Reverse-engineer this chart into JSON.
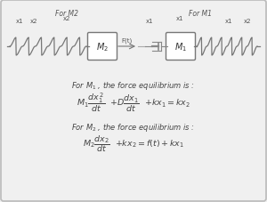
{
  "bg_color": "#f0f0f0",
  "border_color": "#bbbbbb",
  "text_color": "#555555",
  "dark_color": "#333333",
  "title_m2": "For M2",
  "title_m1": "For M1",
  "label_x1a": "x1",
  "label_x2a": "x2",
  "label_x2b": "x2",
  "label_ft": "F(t)",
  "label_x1b": "x1",
  "label_x1c": "x1",
  "label_x1d": "x1",
  "label_x2c": "x2",
  "eq1_header": "For $\\mathit{M_1}$ , the force equilibrium is :",
  "eq1_math_a": "$M_1\\dfrac{dx_1^2}{dt}$",
  "eq1_math_b": "$+ D\\dfrac{dx_1}{dt}$",
  "eq1_math_c": "$+ kx_1 = kx_2$",
  "eq2_header": "For $\\mathit{M_2}$ , the force equilibrium is :",
  "eq2_math_a": "$M_2\\dfrac{dx_2}{dt}$",
  "eq2_math_b": "$+ kx_2 = f(t) + kx_1$"
}
